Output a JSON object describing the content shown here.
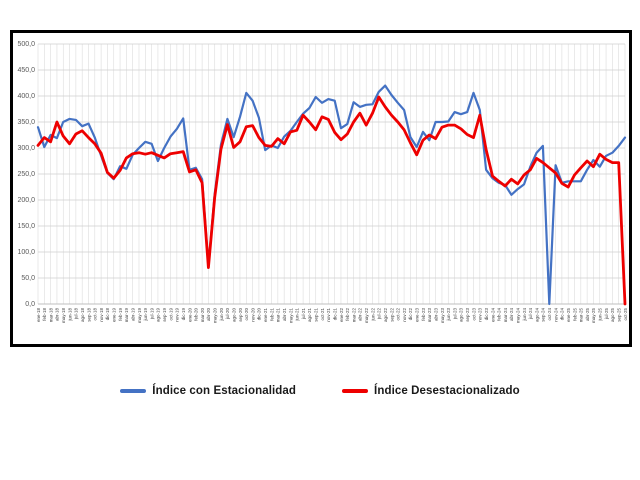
{
  "page": {
    "background": "#ffffff"
  },
  "chart_data": {
    "type": "line",
    "title": "",
    "legend_position": "bottom",
    "grid": true,
    "ylim": [
      0,
      500
    ],
    "ytick_step": 50,
    "ytick_labels": [
      "500,0",
      "450,0",
      "400,0",
      "350,0",
      "300,0",
      "250,0",
      "200,0",
      "150,0",
      "100,0",
      "50,0",
      "0,0"
    ],
    "x": [
      "ene-18",
      "feb-18",
      "mar-18",
      "abr-18",
      "may-18",
      "jun-18",
      "jul-18",
      "ago-18",
      "sep-18",
      "oct-18",
      "nov-18",
      "dic-18",
      "ene-19",
      "feb-19",
      "mar-19",
      "abr-19",
      "may-19",
      "jun-19",
      "jul-19",
      "ago-19",
      "sep-19",
      "oct-19",
      "nov-19",
      "dic-19",
      "ene-20",
      "feb-20",
      "mar-20",
      "abr-20",
      "may-20",
      "jun-20",
      "jul-20",
      "ago-20",
      "sep-20",
      "oct-20",
      "nov-20",
      "dic-20",
      "ene-21",
      "feb-21",
      "mar-21",
      "abr-21",
      "may-21",
      "jun-21",
      "jul-21",
      "ago-21",
      "sep-21",
      "oct-21",
      "nov-21",
      "dic-21",
      "ene-22",
      "feb-22",
      "mar-22",
      "abr-22",
      "may-22",
      "jun-22",
      "jul-22",
      "ago-22",
      "sep-22",
      "oct-22",
      "nov-22",
      "dic-22",
      "ene-23",
      "feb-23",
      "mar-23",
      "abr-23",
      "may-23",
      "jun-23",
      "jul-23",
      "ago-23",
      "sep-23",
      "oct-23",
      "nov-23",
      "dic-23",
      "ene-24",
      "feb-24",
      "mar-24",
      "abr-24",
      "may-24",
      "jun-24",
      "jul-24",
      "ago-24",
      "sep-24",
      "oct-24",
      "nov-24",
      "dic-24",
      "ene-25",
      "feb-25",
      "mar-25",
      "abr-25",
      "may-25",
      "jun-25",
      "jul-25",
      "ago-25",
      "sep-25",
      "oct-25"
    ],
    "series": [
      {
        "name": "Índice con Estacionalidad",
        "color": "#4472C4",
        "values": [
          340,
          302,
          325,
          319,
          350,
          356,
          354,
          342,
          347,
          320,
          285,
          252,
          240,
          265,
          260,
          287,
          300,
          312,
          308,
          275,
          300,
          322,
          337,
          357,
          258,
          262,
          240,
          72,
          212,
          307,
          356,
          321,
          360,
          406,
          391,
          358,
          296,
          305,
          300,
          322,
          333,
          350,
          366,
          377,
          398,
          387,
          394,
          391,
          338,
          346,
          388,
          379,
          383,
          384,
          408,
          420,
          402,
          387,
          373,
          321,
          302,
          331,
          315,
          350,
          350,
          351,
          369,
          365,
          369,
          406,
          373,
          258,
          242,
          233,
          229,
          210,
          221,
          230,
          264,
          291,
          304,
          0,
          267,
          233,
          236,
          236,
          236,
          258,
          277,
          264,
          285,
          291,
          304,
          320
        ]
      },
      {
        "name": "Índice Desestacionalizado",
        "color": "#EE0000",
        "values": [
          305,
          320,
          312,
          350,
          323,
          308,
          327,
          333,
          320,
          308,
          290,
          253,
          242,
          257,
          281,
          289,
          291,
          288,
          291,
          286,
          281,
          289,
          291,
          293,
          254,
          258,
          233,
          70,
          205,
          298,
          345,
          301,
          312,
          341,
          343,
          320,
          305,
          303,
          318,
          308,
          331,
          334,
          363,
          350,
          335,
          360,
          355,
          330,
          316,
          327,
          350,
          367,
          344,
          367,
          398,
          379,
          363,
          350,
          335,
          310,
          287,
          315,
          325,
          318,
          340,
          344,
          344,
          337,
          326,
          320,
          363,
          297,
          246,
          236,
          227,
          240,
          231,
          248,
          258,
          280,
          272,
          262,
          252,
          232,
          225,
          248,
          262,
          275,
          264,
          288,
          278,
          272,
          272,
          0
        ]
      }
    ]
  }
}
